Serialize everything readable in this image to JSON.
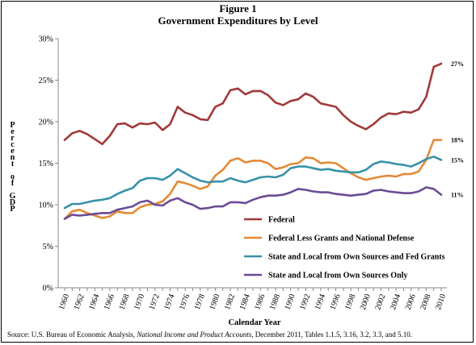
{
  "figure": {
    "label": "Figure 1",
    "title": "Government Expenditures by Level",
    "source_prefix": "Source:  U.S. Bureau of Economic Analysis, ",
    "source_italic": "National Income and Product Accounts,",
    "source_suffix": " December 2011, Tables 1.1.5, 3.16, 3.2, 3.3, and 5.10."
  },
  "chart_data": {
    "type": "line",
    "title": "Government Expenditures by Level",
    "xlabel": "Calendar Year",
    "ylabel": "Percent of GDP",
    "ylim": [
      0,
      30
    ],
    "yticks": [
      "0%",
      "5%",
      "10%",
      "15%",
      "20%",
      "25%",
      "30%"
    ],
    "xticks": [
      "1960",
      "1962",
      "1964",
      "1966",
      "1968",
      "1970",
      "1972",
      "1974",
      "1976",
      "1978",
      "1980",
      "1982",
      "1984",
      "1986",
      "1988",
      "1990",
      "1992",
      "1994",
      "1996",
      "1998",
      "2000",
      "2002",
      "2004",
      "2006",
      "2008",
      "2010"
    ],
    "grid": false,
    "legend_position": "lower-right inside",
    "x": [
      1960,
      1961,
      1962,
      1963,
      1964,
      1965,
      1966,
      1967,
      1968,
      1969,
      1970,
      1971,
      1972,
      1973,
      1974,
      1975,
      1976,
      1977,
      1978,
      1979,
      1980,
      1981,
      1982,
      1983,
      1984,
      1985,
      1986,
      1987,
      1988,
      1989,
      1990,
      1991,
      1992,
      1993,
      1994,
      1995,
      1996,
      1997,
      1998,
      1999,
      2000,
      2001,
      2002,
      2003,
      2004,
      2005,
      2006,
      2007,
      2008,
      2009,
      2010
    ],
    "series": [
      {
        "name": "Federal",
        "color": "#a0393a",
        "end_label": "27%",
        "values": [
          17.8,
          18.6,
          18.9,
          18.5,
          17.9,
          17.3,
          18.3,
          19.7,
          19.8,
          19.3,
          19.8,
          19.7,
          19.9,
          19.0,
          19.7,
          21.8,
          21.1,
          20.8,
          20.3,
          20.2,
          21.8,
          22.2,
          23.8,
          24.0,
          23.3,
          23.7,
          23.7,
          23.2,
          22.3,
          22.0,
          22.5,
          22.7,
          23.4,
          23.0,
          22.2,
          22.0,
          21.8,
          20.8,
          20.0,
          19.5,
          19.1,
          19.7,
          20.5,
          21.0,
          20.9,
          21.2,
          21.1,
          21.5,
          23.0,
          26.6,
          27.0
        ]
      },
      {
        "name": "Federal Less Grants and National Defense",
        "color": "#e38a35",
        "end_label": "18%",
        "values": [
          8.3,
          9.2,
          9.4,
          9.0,
          8.7,
          8.4,
          8.6,
          9.2,
          9.0,
          9.0,
          9.7,
          10.0,
          10.1,
          10.4,
          11.3,
          12.8,
          12.6,
          12.3,
          11.9,
          12.2,
          13.5,
          14.2,
          15.3,
          15.6,
          15.1,
          15.3,
          15.3,
          15.0,
          14.3,
          14.5,
          14.9,
          15.0,
          15.7,
          15.6,
          15.0,
          15.1,
          15.0,
          14.4,
          13.8,
          13.3,
          13.0,
          13.2,
          13.4,
          13.5,
          13.4,
          13.7,
          13.7,
          14.0,
          15.4,
          17.8,
          17.8
        ]
      },
      {
        "name": "State and Local from Own Sources and Fed Grants",
        "color": "#3891a7",
        "end_label": "15%",
        "values": [
          9.6,
          10.1,
          10.1,
          10.3,
          10.5,
          10.6,
          10.8,
          11.3,
          11.7,
          12.0,
          12.9,
          13.2,
          13.2,
          13.0,
          13.5,
          14.3,
          13.8,
          13.3,
          12.9,
          12.7,
          12.8,
          12.8,
          13.2,
          12.9,
          12.7,
          13.0,
          13.3,
          13.4,
          13.3,
          13.6,
          14.4,
          14.6,
          14.6,
          14.4,
          14.2,
          14.3,
          14.1,
          14.0,
          13.9,
          13.9,
          14.2,
          14.9,
          15.2,
          15.1,
          14.9,
          14.8,
          14.6,
          15.0,
          15.5,
          15.8,
          15.4
        ]
      },
      {
        "name": "State and Local from Own Sources Only",
        "color": "#6b4b95",
        "end_label": "11%",
        "values": [
          8.3,
          8.8,
          8.7,
          8.8,
          8.9,
          9.0,
          9.0,
          9.4,
          9.6,
          9.8,
          10.3,
          10.5,
          10.0,
          9.9,
          10.5,
          10.8,
          10.3,
          10.0,
          9.5,
          9.6,
          9.8,
          9.8,
          10.3,
          10.3,
          10.2,
          10.6,
          10.9,
          11.1,
          11.1,
          11.2,
          11.5,
          11.9,
          11.8,
          11.6,
          11.5,
          11.5,
          11.3,
          11.2,
          11.1,
          11.2,
          11.3,
          11.7,
          11.8,
          11.6,
          11.5,
          11.4,
          11.4,
          11.6,
          12.1,
          11.9,
          11.2
        ]
      }
    ]
  }
}
